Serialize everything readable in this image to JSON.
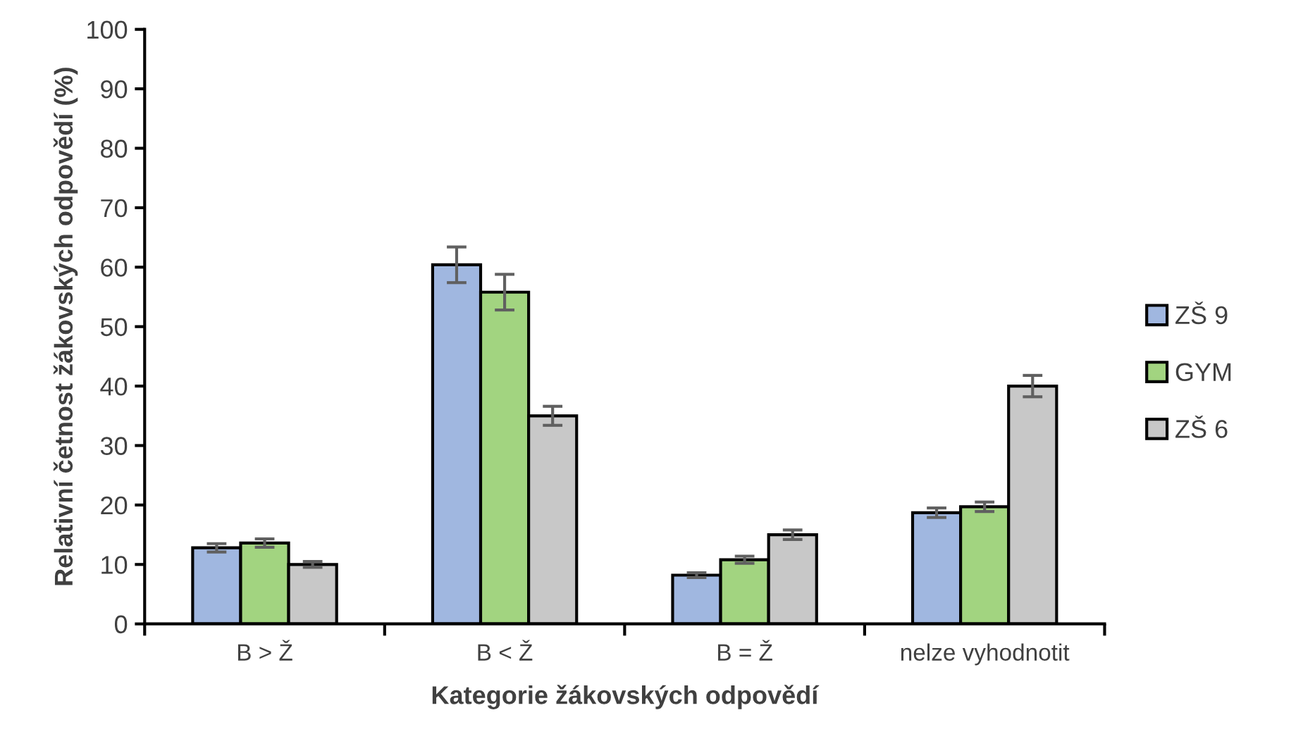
{
  "chart_data": {
    "type": "bar",
    "xlabel": "Kategorie žákovských odpovědí",
    "ylabel": "Relativní četnost žákovských odpovědí (%)",
    "categories": [
      "B > Ž",
      "B < Ž",
      "B = Ž",
      "nelze vyhodnotit"
    ],
    "series": [
      {
        "name": "ZŠ 9",
        "color": "#a0b7e0",
        "values": [
          12.8,
          60.4,
          8.2,
          18.7
        ],
        "errors": [
          0.7,
          3.0,
          0.4,
          0.8
        ]
      },
      {
        "name": "GYM",
        "color": "#a2d480",
        "values": [
          13.6,
          55.8,
          10.8,
          19.7
        ],
        "errors": [
          0.7,
          3.0,
          0.6,
          0.8
        ]
      },
      {
        "name": "ZŠ 6",
        "color": "#c8c8c8",
        "values": [
          10.0,
          35.0,
          15.0,
          40.0
        ],
        "errors": [
          0.5,
          1.6,
          0.8,
          1.8
        ]
      }
    ],
    "ylim": [
      0,
      100
    ],
    "yticks": [
      0,
      10,
      20,
      30,
      40,
      50,
      60,
      70,
      80,
      90,
      100
    ],
    "grid": false,
    "legend": "right"
  }
}
